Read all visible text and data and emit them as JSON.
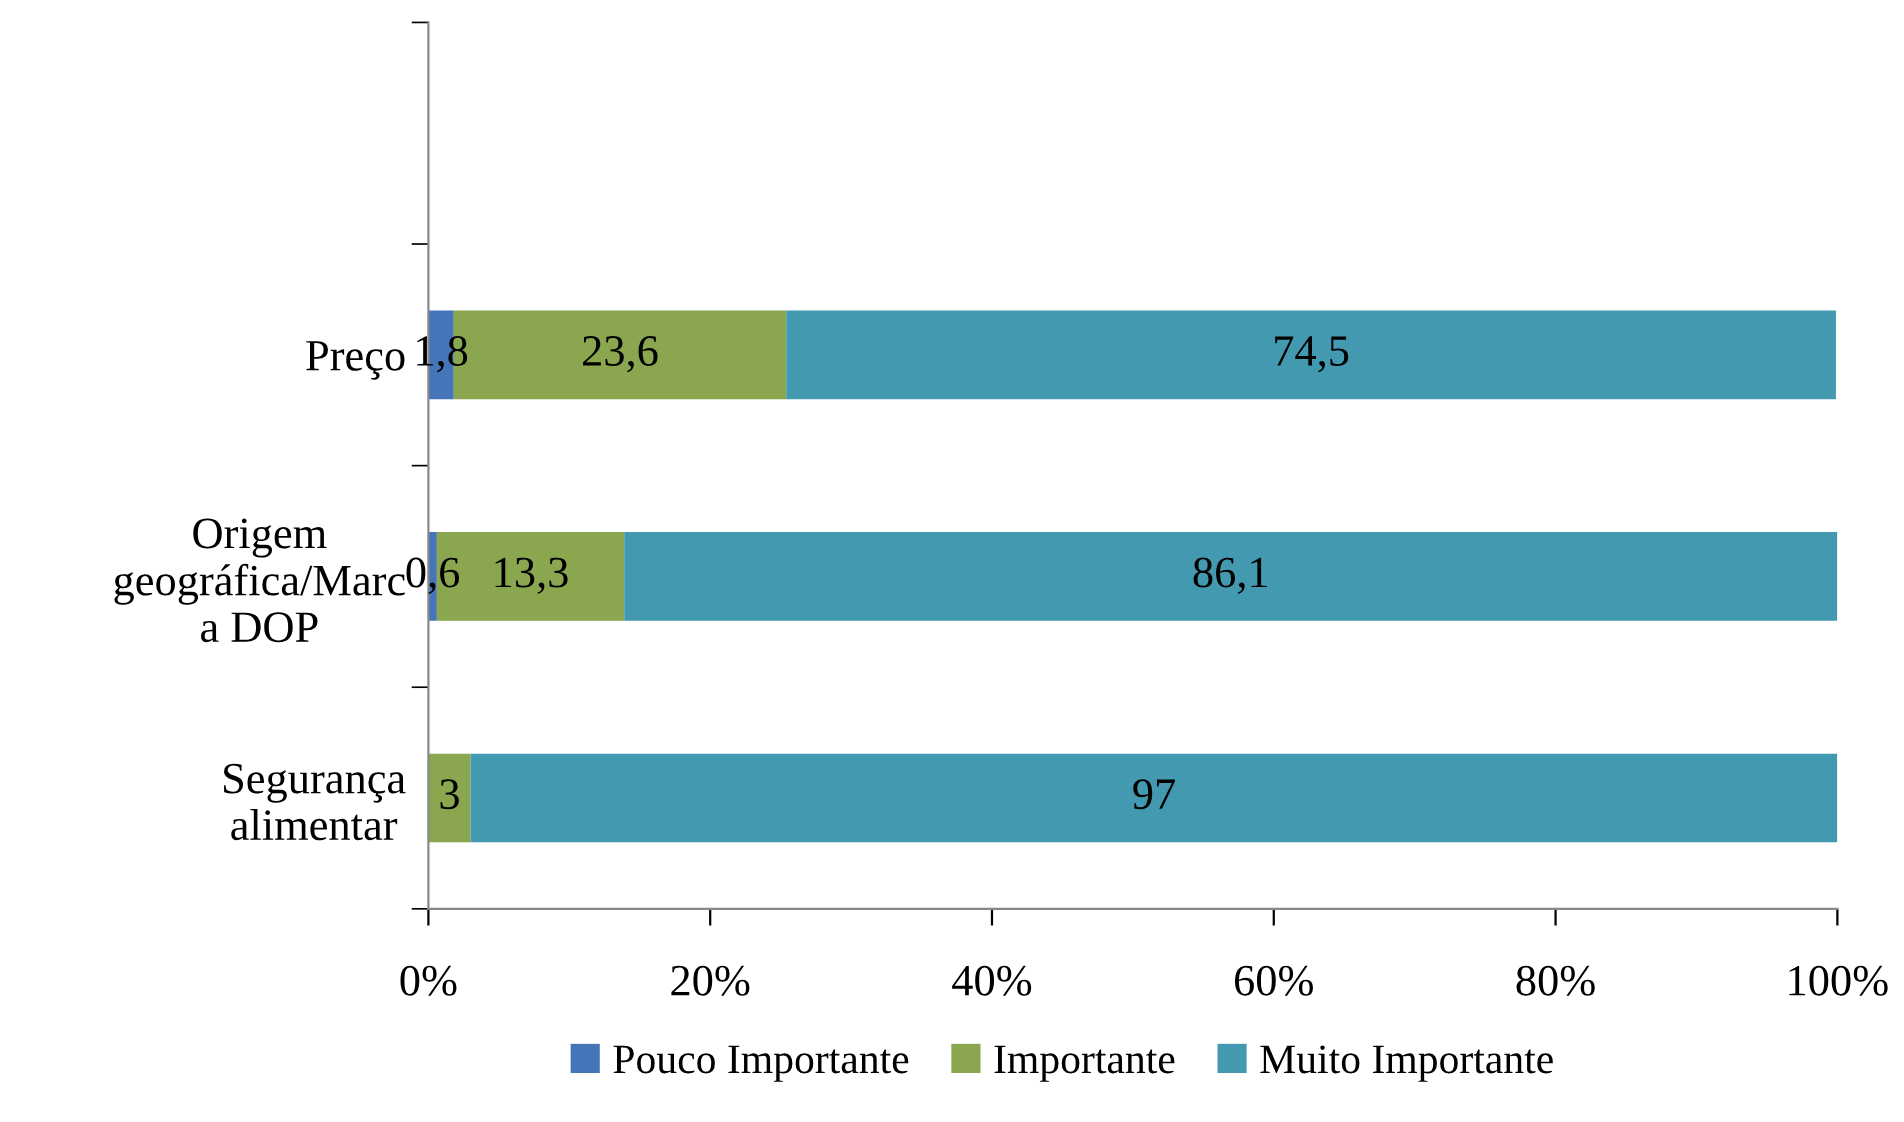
{
  "chart_data": {
    "type": "bar",
    "orientation": "horizontal",
    "stacked": true,
    "categories": [
      null,
      "Preço",
      "Origem\ngeográfica/Marc\na DOP",
      "Segurança\nalimentar"
    ],
    "series": [
      {
        "name": "Pouco Importante",
        "color": "#4674b8",
        "values": [
          null,
          1.8,
          0.6,
          null
        ],
        "value_labels": [
          null,
          "1,8",
          "0,6",
          null
        ]
      },
      {
        "name": "Importante",
        "color": "#8aa64f",
        "values": [
          null,
          23.6,
          13.3,
          3
        ],
        "value_labels": [
          null,
          "23,6",
          "13,3",
          "3"
        ]
      },
      {
        "name": "Muito Importante",
        "color": "#4299b0",
        "values": [
          null,
          74.5,
          86.1,
          97
        ],
        "value_labels": [
          null,
          "74,5",
          "86,1",
          "97"
        ]
      }
    ],
    "xlim": [
      0,
      100
    ],
    "xticks": [
      {
        "value": 0,
        "label": "0%"
      },
      {
        "value": 20,
        "label": "20%"
      },
      {
        "value": 40,
        "label": "40%"
      },
      {
        "value": 60,
        "label": "60%"
      },
      {
        "value": 80,
        "label": "80%"
      },
      {
        "value": 100,
        "label": "100%"
      }
    ],
    "grid": false,
    "legend": "bottom"
  }
}
